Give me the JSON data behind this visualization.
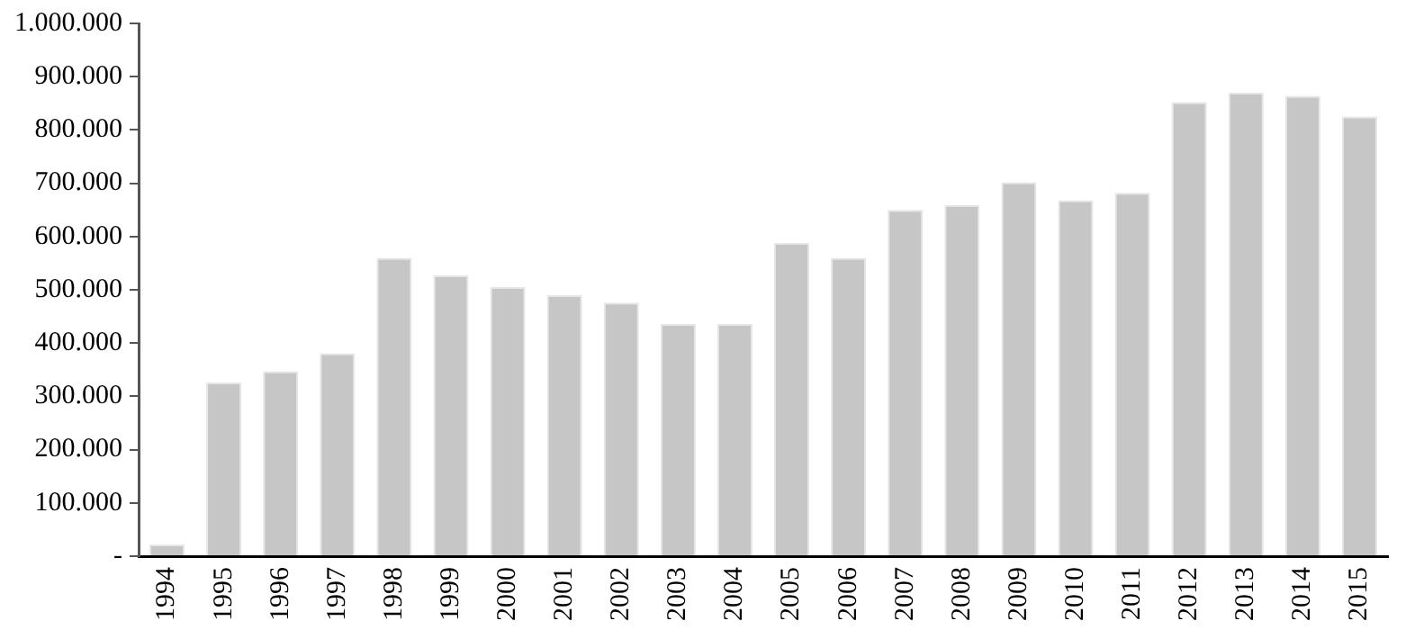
{
  "chart_data": {
    "type": "bar",
    "categories": [
      "1994",
      "1995",
      "1996",
      "1997",
      "1998",
      "1999",
      "2000",
      "2001",
      "2002",
      "2003",
      "2004",
      "2005",
      "2006",
      "2007",
      "2008",
      "2009",
      "2010",
      "2011",
      "2012",
      "2013",
      "2014",
      "2015"
    ],
    "values": [
      22000,
      326000,
      347000,
      381000,
      560000,
      527000,
      505000,
      490000,
      476000,
      436000,
      436000,
      588000,
      560000,
      650000,
      659000,
      702000,
      668000,
      682000,
      852000,
      870000,
      864000,
      825000
    ],
    "color": "#c6c6c6",
    "ylim": [
      0,
      1000000
    ],
    "yticks": [
      {
        "value": 0,
        "label": "-"
      },
      {
        "value": 100000,
        "label": "100.000"
      },
      {
        "value": 200000,
        "label": "200.000"
      },
      {
        "value": 300000,
        "label": "300.000"
      },
      {
        "value": 400000,
        "label": "400.000"
      },
      {
        "value": 500000,
        "label": "500.000"
      },
      {
        "value": 600000,
        "label": "600.000"
      },
      {
        "value": 700000,
        "label": "700.000"
      },
      {
        "value": 800000,
        "label": "800.000"
      },
      {
        "value": 900000,
        "label": "900.000"
      },
      {
        "value": 1000000,
        "label": "1.000.000"
      }
    ],
    "grid": false,
    "legend": false
  }
}
